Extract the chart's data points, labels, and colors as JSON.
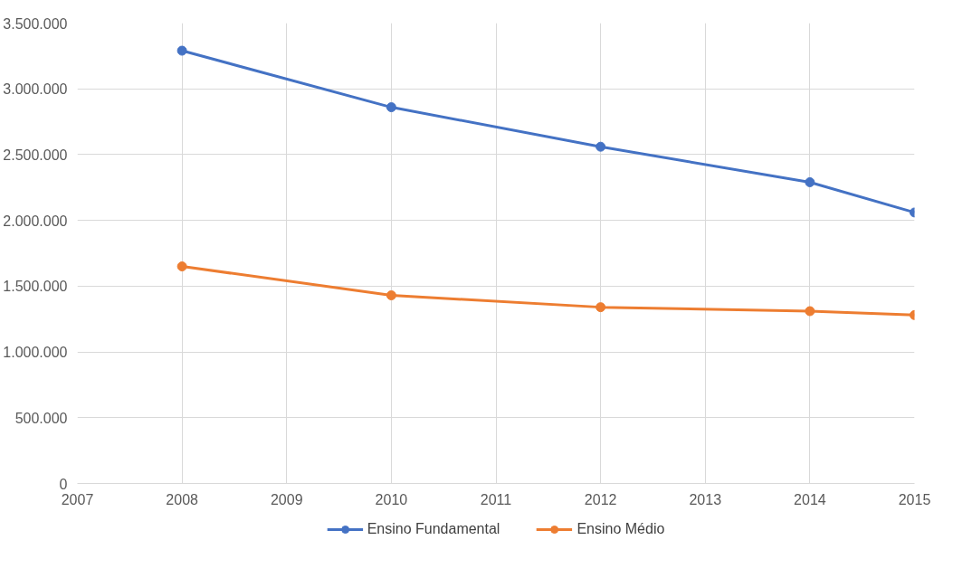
{
  "chart_data": {
    "type": "line",
    "x": [
      2008,
      2010,
      2012,
      2014,
      2015
    ],
    "series": [
      {
        "name": "Ensino Fundamental",
        "color": "#4472c4",
        "values": [
          3290000,
          2860000,
          2560000,
          2290000,
          2060000
        ]
      },
      {
        "name": "Ensino Médio",
        "color": "#ed7d31",
        "values": [
          1650000,
          1430000,
          1340000,
          1310000,
          1280000
        ]
      }
    ],
    "xlim": [
      2007,
      2015
    ],
    "xticks": [
      2007,
      2008,
      2009,
      2010,
      2011,
      2012,
      2013,
      2014,
      2015
    ],
    "ylim": [
      0,
      3500000
    ],
    "yticks": [
      {
        "value": 0,
        "label": "0"
      },
      {
        "value": 500000,
        "label": "500.000"
      },
      {
        "value": 1000000,
        "label": "1.000.000"
      },
      {
        "value": 1500000,
        "label": "1.500.000"
      },
      {
        "value": 2000000,
        "label": "2.000.000"
      },
      {
        "value": 2500000,
        "label": "2.500.000"
      },
      {
        "value": 3000000,
        "label": "3.000.000"
      },
      {
        "value": 3500000,
        "label": "3.500.000"
      }
    ],
    "grid": true,
    "legend": "bottom",
    "marker": "circle",
    "line_style": "solid"
  }
}
